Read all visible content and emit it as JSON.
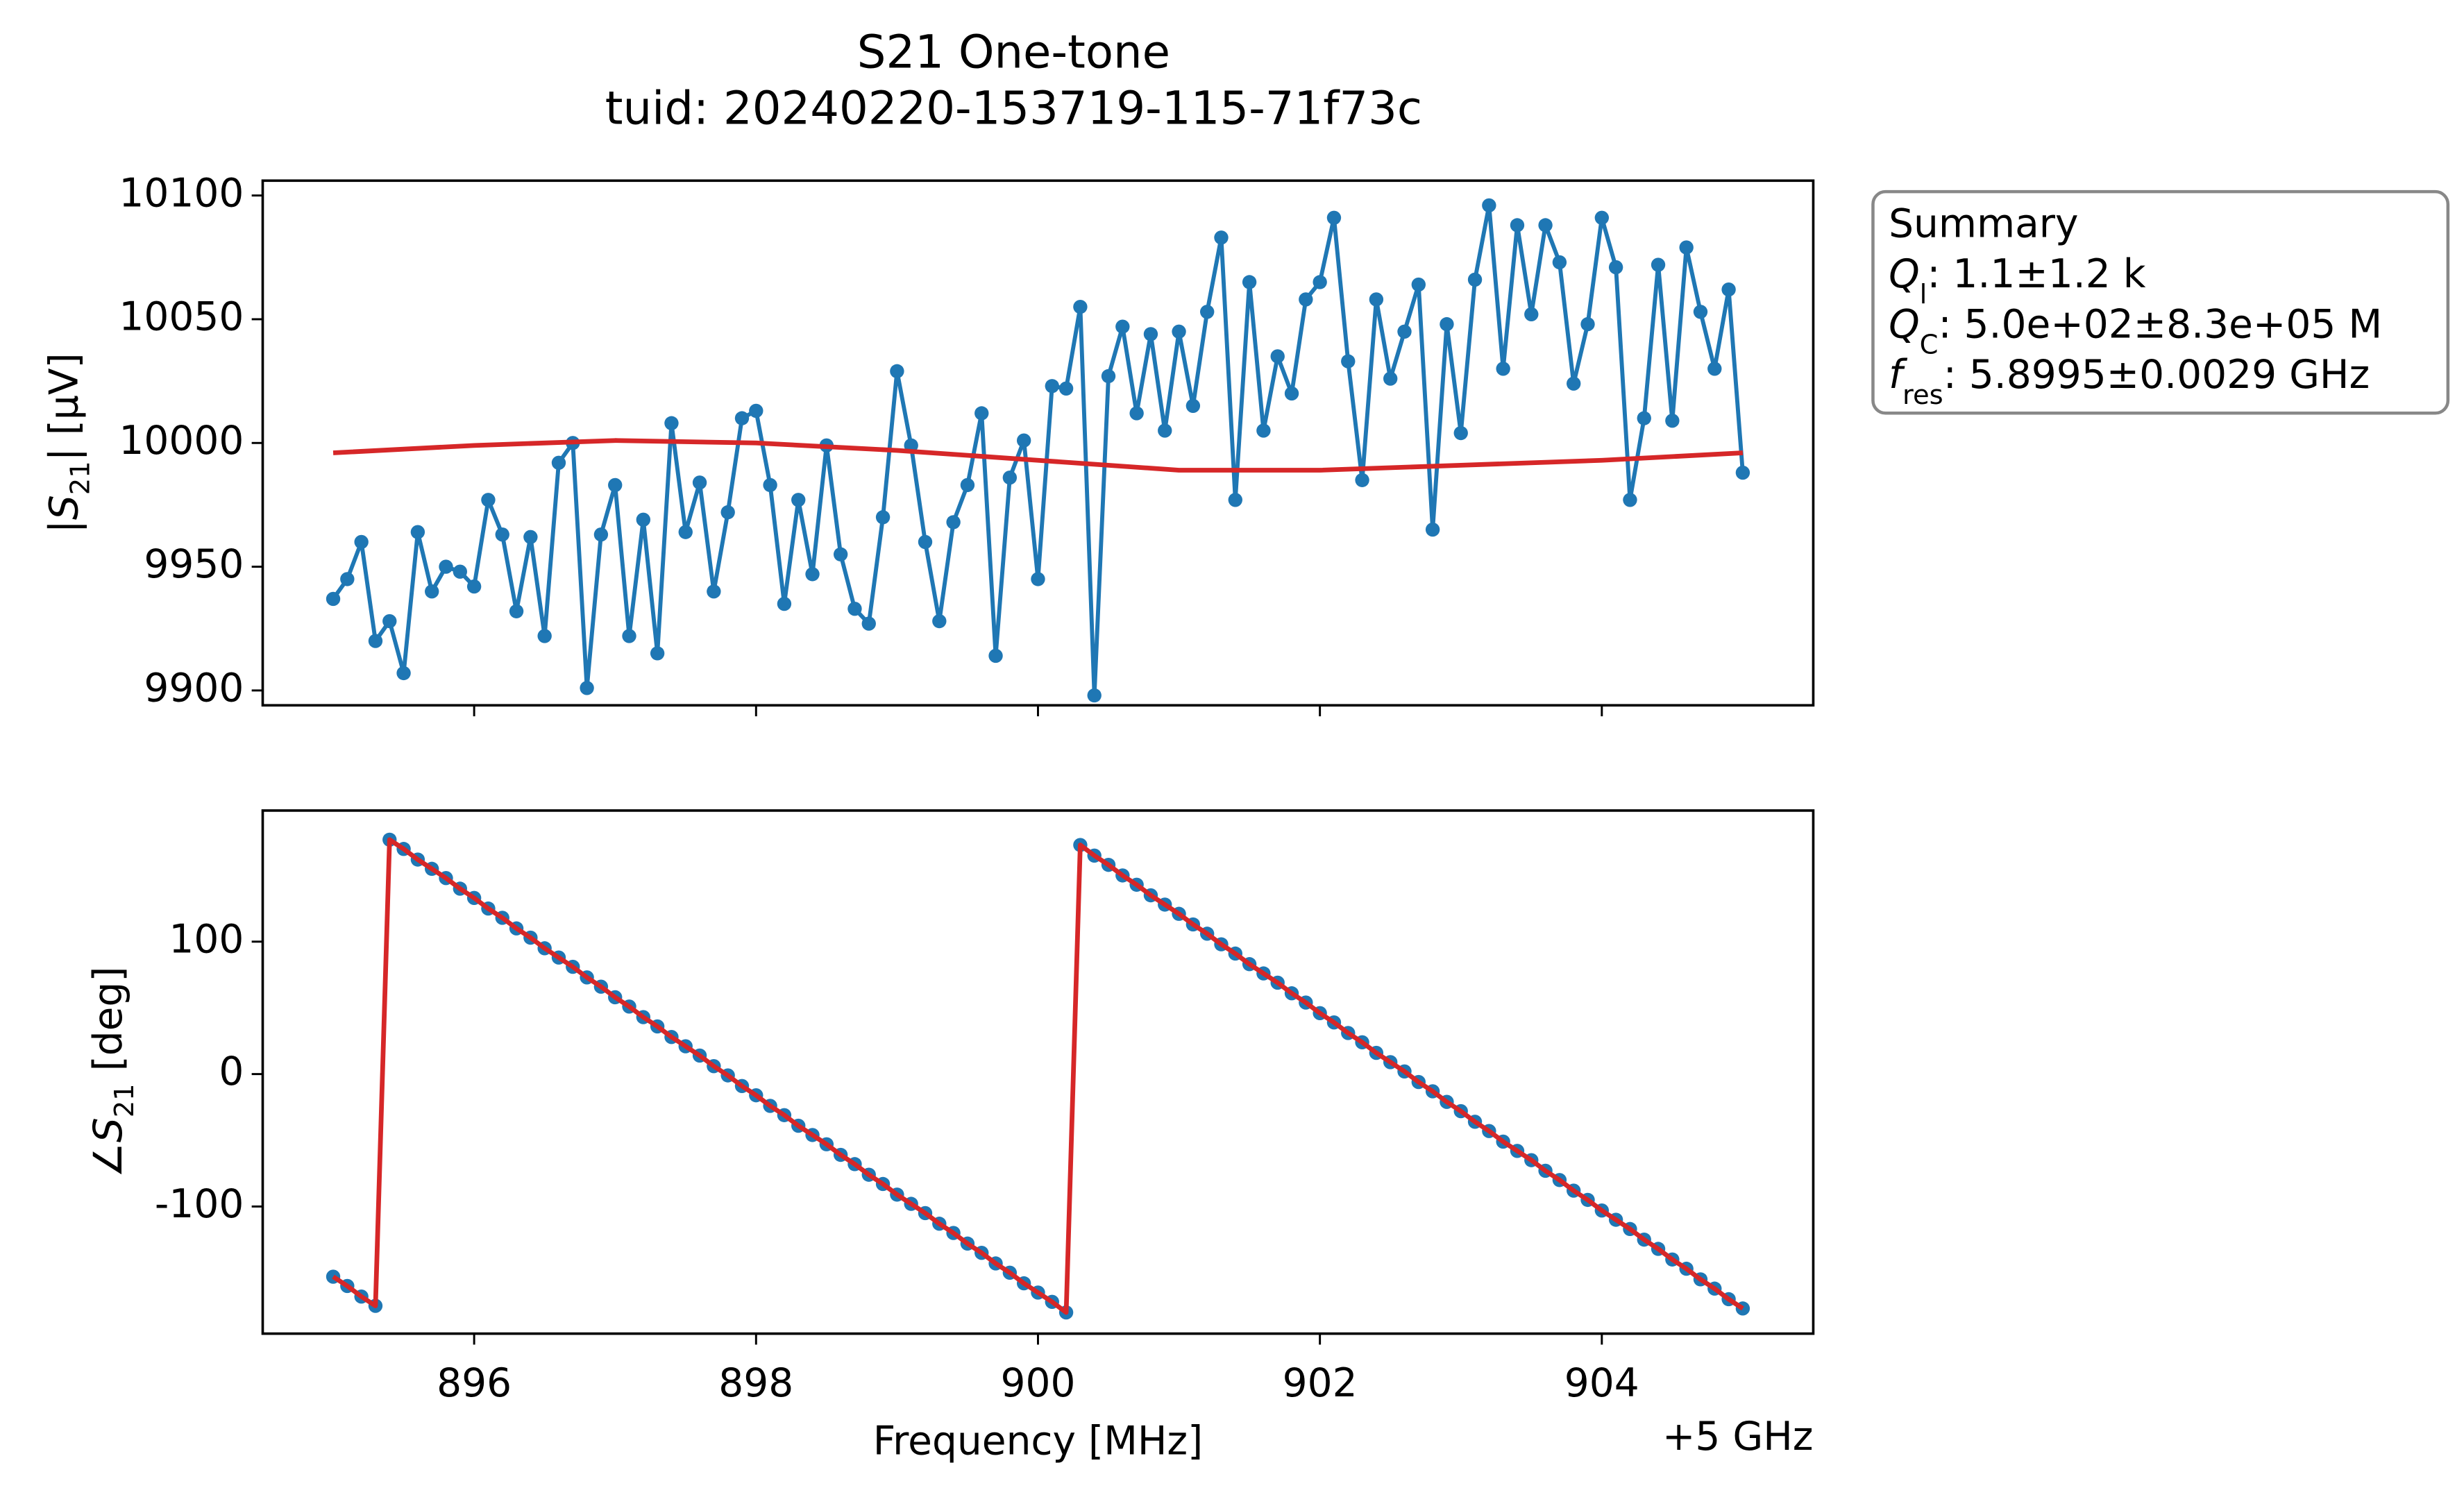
{
  "title": "S21 One-tone",
  "subtitle": "tuid: 20240220-153719-115-71f73c",
  "summary": {
    "title": "Summary",
    "lines": [
      {
        "symbol": "Q",
        "sub": "l",
        "text": ": 1.1±1.2 k"
      },
      {
        "symbol": "Q",
        "sub": "C",
        "text": ": 5.0e+02±8.3e+05 M"
      },
      {
        "symbol": "f",
        "sub": "res",
        "text": ": 5.8995±0.0029 GHz"
      }
    ]
  },
  "chart_data": [
    {
      "type": "line",
      "ylabel": {
        "pre": "|",
        "symbol": "S",
        "sub": "21",
        "text": "| [µV]"
      },
      "xlim": [
        894.5,
        905.5
      ],
      "xticks": [
        896,
        898,
        900,
        902,
        904
      ],
      "xtick_labels_shown": false,
      "ylim": [
        9894,
        10106
      ],
      "yticks": [
        9900,
        9950,
        10000,
        10050,
        10100
      ],
      "series": [
        {
          "color": "#1f77b4",
          "markers": true,
          "x": [
            895.0,
            895.1,
            895.2,
            895.3,
            895.4,
            895.5,
            895.6,
            895.7,
            895.8,
            895.9,
            896.0,
            896.1,
            896.2,
            896.3,
            896.4,
            896.5,
            896.6,
            896.7,
            896.8,
            896.9,
            897.0,
            897.1,
            897.2,
            897.3,
            897.4,
            897.5,
            897.6,
            897.7,
            897.8,
            897.9,
            898.0,
            898.1,
            898.2,
            898.3,
            898.4,
            898.5,
            898.6,
            898.7,
            898.8,
            898.9,
            899.0,
            899.1,
            899.2,
            899.3,
            899.4,
            899.5,
            899.6,
            899.7,
            899.8,
            899.9,
            900.0,
            900.1,
            900.2,
            900.3,
            900.4,
            900.5,
            900.6,
            900.7,
            900.8,
            900.9,
            901.0,
            901.1,
            901.2,
            901.3,
            901.4,
            901.5,
            901.6,
            901.7,
            901.8,
            901.9,
            902.0,
            902.1,
            902.2,
            902.3,
            902.4,
            902.5,
            902.6,
            902.7,
            902.8,
            902.9,
            903.0,
            903.1,
            903.2,
            903.3,
            903.4,
            903.5,
            903.6,
            903.7,
            903.8,
            903.9,
            904.0,
            904.1,
            904.2,
            904.3,
            904.4,
            904.5,
            904.6,
            904.7,
            904.8,
            904.9,
            905.0
          ],
          "values": [
            9937,
            9945,
            9960,
            9920,
            9928,
            9907,
            9964,
            9940,
            9950,
            9948,
            9942,
            9977,
            9963,
            9932,
            9962,
            9922,
            9992,
            10000,
            9901,
            9963,
            9983,
            9922,
            9969,
            9915,
            10008,
            9964,
            9984,
            9940,
            9972,
            10010,
            10013,
            9983,
            9935,
            9977,
            9947,
            9999,
            9955,
            9933,
            9927,
            9970,
            10029,
            9999,
            9960,
            9928,
            9968,
            9983,
            10012,
            9914,
            9986,
            10001,
            9945,
            10023,
            10022,
            10055,
            9898,
            10027,
            10047,
            10012,
            10044,
            10005,
            10045,
            10015,
            10053,
            10083,
            9977,
            10065,
            10005,
            10035,
            10020,
            10058,
            10065,
            10091,
            10033,
            9985,
            10058,
            10026,
            10045,
            10064,
            9965,
            10048,
            10004,
            10066,
            10096,
            10030,
            10088,
            10052,
            10088,
            10073,
            10024,
            10048,
            10091,
            10071,
            9977,
            10010,
            10072,
            10009,
            10079,
            10053,
            10030,
            10062,
            9988
          ]
        },
        {
          "color": "#d62728",
          "markers": false,
          "x": [
            895,
            896,
            897,
            898,
            899,
            900,
            901,
            902,
            903,
            904,
            905
          ],
          "values": [
            9996,
            9999,
            10001,
            10000,
            9997,
            9993,
            9989,
            9989,
            9991,
            9993,
            9996
          ]
        }
      ]
    },
    {
      "type": "line",
      "ylabel": {
        "pre": "∠",
        "symbol": "S",
        "sub": "21",
        "text": " [deg]"
      },
      "xlabel": "Frequency [MHz]",
      "x_offset_label": "+5 GHz",
      "xlim": [
        894.5,
        905.5
      ],
      "xticks": [
        896,
        898,
        900,
        902,
        904
      ],
      "xtick_labels_shown": true,
      "ylim": [
        -196,
        199
      ],
      "yticks": [
        -100,
        0,
        100
      ],
      "series": [
        {
          "color": "#1f77b4",
          "markers": true,
          "x": [
            895.0,
            895.1,
            895.2,
            895.3,
            895.4,
            895.5,
            895.6,
            895.7,
            895.8,
            895.9,
            896.0,
            896.1,
            896.2,
            896.3,
            896.4,
            896.5,
            896.6,
            896.7,
            896.8,
            896.9,
            897.0,
            897.1,
            897.2,
            897.3,
            897.4,
            897.5,
            897.6,
            897.7,
            897.8,
            897.9,
            898.0,
            898.1,
            898.2,
            898.3,
            898.4,
            898.5,
            898.6,
            898.7,
            898.8,
            898.9,
            899.0,
            899.1,
            899.2,
            899.3,
            899.4,
            899.5,
            899.6,
            899.7,
            899.8,
            899.9,
            900.0,
            900.1,
            900.2,
            900.3,
            900.4,
            900.5,
            900.6,
            900.7,
            900.8,
            900.9,
            901.0,
            901.1,
            901.2,
            901.3,
            901.4,
            901.5,
            901.6,
            901.7,
            901.8,
            901.9,
            902.0,
            902.1,
            902.2,
            902.3,
            902.4,
            902.5,
            902.6,
            902.7,
            902.8,
            902.9,
            903.0,
            903.1,
            903.2,
            903.3,
            903.4,
            903.5,
            903.6,
            903.7,
            903.8,
            903.9,
            904.0,
            904.1,
            904.2,
            904.3,
            904.4,
            904.5,
            904.6,
            904.7,
            904.8,
            904.9,
            905.0
          ],
          "values": [
            -153,
            -160,
            -168,
            -175,
            177,
            170,
            162,
            155,
            148,
            140,
            133,
            125,
            118,
            110,
            103,
            95,
            88,
            81,
            73,
            66,
            58,
            51,
            43,
            36,
            28,
            21,
            14,
            6,
            -1,
            -9,
            -16,
            -24,
            -31,
            -39,
            -46,
            -53,
            -61,
            -68,
            -76,
            -83,
            -91,
            -98,
            -105,
            -113,
            -120,
            -128,
            -135,
            -143,
            -150,
            -158,
            -165,
            -172,
            -180,
            173,
            165,
            158,
            150,
            143,
            135,
            128,
            121,
            113,
            106,
            98,
            91,
            83,
            76,
            69,
            61,
            54,
            46,
            39,
            31,
            24,
            16,
            9,
            2,
            -6,
            -13,
            -21,
            -28,
            -36,
            -43,
            -51,
            -58,
            -65,
            -73,
            -80,
            -88,
            -95,
            -103,
            -110,
            -117,
            -125,
            -132,
            -140,
            -147,
            -155,
            -162,
            -170,
            -177
          ]
        },
        {
          "color": "#d62728",
          "markers": false,
          "x": [
            895.0,
            895.1,
            895.2,
            895.3,
            895.4,
            895.5,
            895.6,
            895.7,
            895.8,
            895.9,
            896.0,
            896.1,
            896.2,
            896.3,
            896.4,
            896.5,
            896.6,
            896.7,
            896.8,
            896.9,
            897.0,
            897.1,
            897.2,
            897.3,
            897.4,
            897.5,
            897.6,
            897.7,
            897.8,
            897.9,
            898.0,
            898.1,
            898.2,
            898.3,
            898.4,
            898.5,
            898.6,
            898.7,
            898.8,
            898.9,
            899.0,
            899.1,
            899.2,
            899.3,
            899.4,
            899.5,
            899.6,
            899.7,
            899.8,
            899.9,
            900.0,
            900.1,
            900.2,
            900.3,
            900.4,
            900.5,
            900.6,
            900.7,
            900.8,
            900.9,
            901.0,
            901.1,
            901.2,
            901.3,
            901.4,
            901.5,
            901.6,
            901.7,
            901.8,
            901.9,
            902.0,
            902.1,
            902.2,
            902.3,
            902.4,
            902.5,
            902.6,
            902.7,
            902.8,
            902.9,
            903.0,
            903.1,
            903.2,
            903.3,
            903.4,
            903.5,
            903.6,
            903.7,
            903.8,
            903.9,
            904.0,
            904.1,
            904.2,
            904.3,
            904.4,
            904.5,
            904.6,
            904.7,
            904.8,
            904.9,
            905.0
          ],
          "values": [
            -153,
            -160,
            -168,
            -175,
            177,
            170,
            162,
            155,
            148,
            140,
            133,
            125,
            118,
            110,
            103,
            95,
            88,
            81,
            73,
            66,
            58,
            51,
            43,
            36,
            28,
            21,
            14,
            6,
            -1,
            -9,
            -16,
            -24,
            -31,
            -39,
            -46,
            -53,
            -61,
            -68,
            -76,
            -83,
            -91,
            -98,
            -105,
            -113,
            -120,
            -128,
            -135,
            -143,
            -150,
            -158,
            -165,
            -172,
            -180,
            173,
            165,
            158,
            150,
            143,
            135,
            128,
            121,
            113,
            106,
            98,
            91,
            83,
            76,
            69,
            61,
            54,
            46,
            39,
            31,
            24,
            16,
            9,
            2,
            -6,
            -13,
            -21,
            -28,
            -36,
            -43,
            -51,
            -58,
            -65,
            -73,
            -80,
            -88,
            -95,
            -103,
            -110,
            -117,
            -125,
            -132,
            -140,
            -147,
            -155,
            -162,
            -170,
            -177
          ]
        }
      ]
    }
  ]
}
